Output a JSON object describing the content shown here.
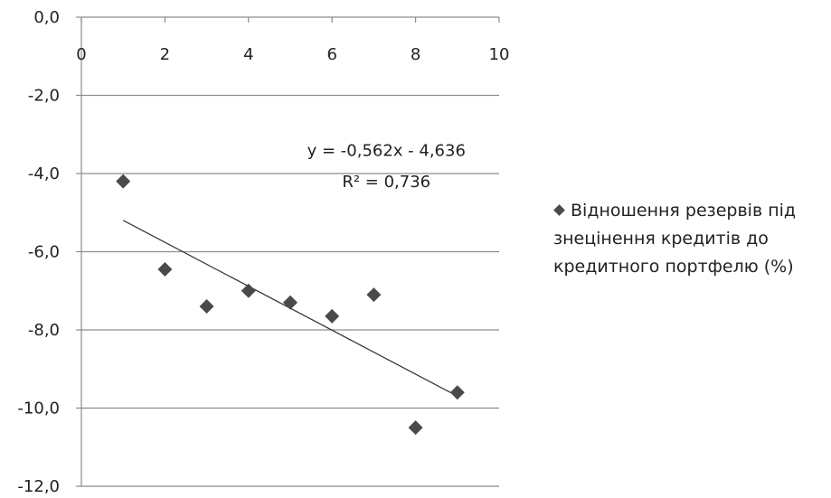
{
  "chart_data": {
    "type": "scatter",
    "title": "",
    "xlabel": "",
    "ylabel": "",
    "xlim": [
      0,
      10
    ],
    "ylim": [
      -12,
      0
    ],
    "x_ticks": [
      "0",
      "2",
      "4",
      "6",
      "8",
      "10"
    ],
    "y_ticks": [
      "0,0",
      "-2,0",
      "-4,0",
      "-6,0",
      "-8,0",
      "-10,0",
      "-12,0"
    ],
    "grid": "horizontal",
    "legend_position": "right",
    "series": [
      {
        "name": "Відношення резервів під знецінення кредитів до кредитного портфелю (%)",
        "color": "#4a4a4a",
        "marker": "diamond",
        "x": [
          1,
          2,
          3,
          4,
          5,
          6,
          7,
          8,
          9
        ],
        "y": [
          -4.2,
          -6.45,
          -7.4,
          -7.0,
          -7.3,
          -7.65,
          -7.1,
          -10.5,
          -9.6
        ]
      }
    ],
    "trendline": {
      "type": "linear",
      "slope": -0.562,
      "intercept": -4.636,
      "x_range": [
        1,
        9
      ],
      "equation": "y = -0,562x - 4,636",
      "r_squared_label": "R² = 0,736"
    }
  }
}
